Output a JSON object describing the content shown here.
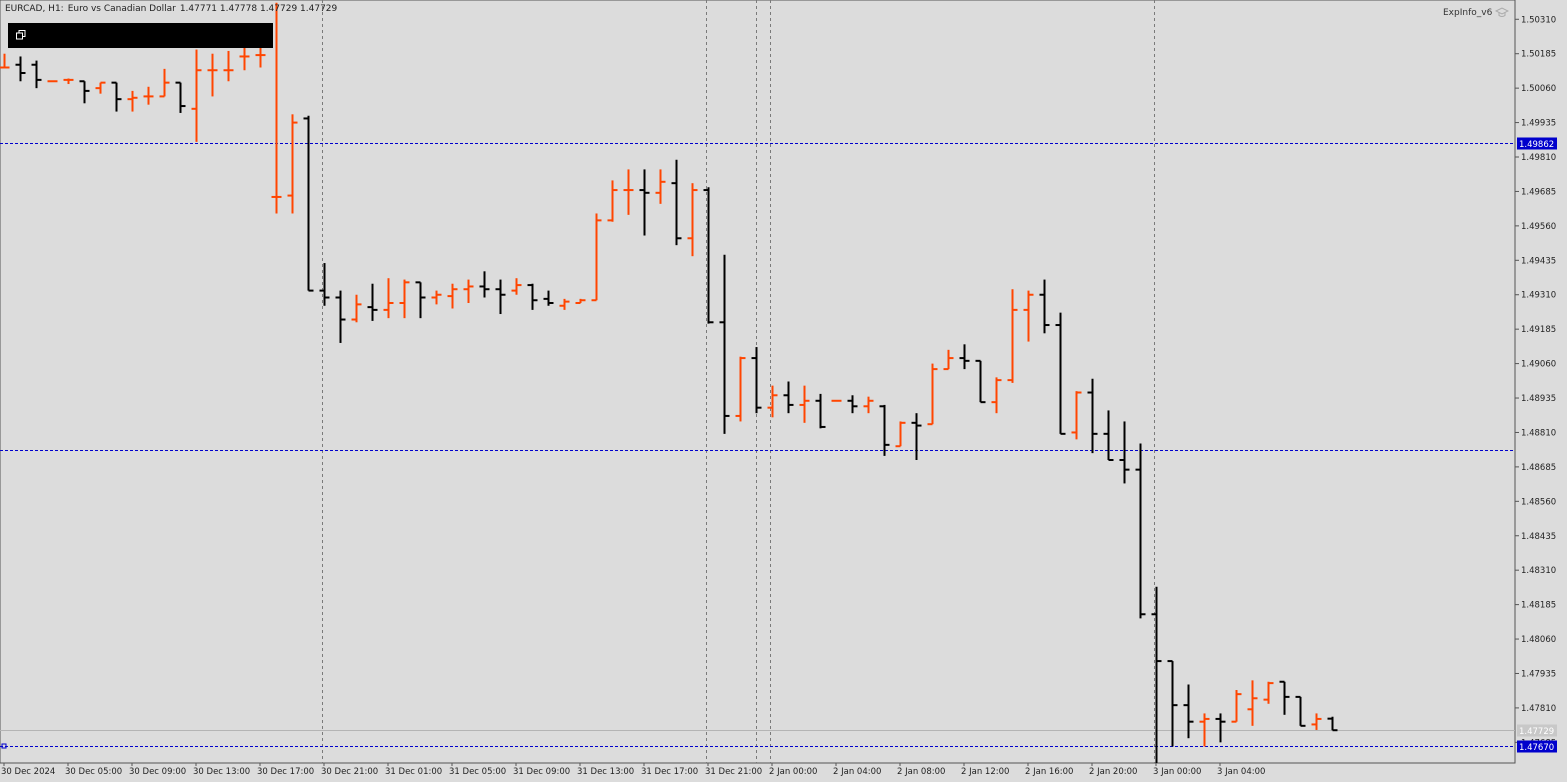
{
  "header": {
    "symbol": "EURCAD, H1:",
    "description": "Euro vs Canadian Dollar",
    "ohlc": "1.47771 1.47778 1.47729 1.47729"
  },
  "indicator": {
    "label": "ExpInfo_v6",
    "icon": "graduation-cap-icon"
  },
  "window_button": {
    "icon": "window-restore-icon"
  },
  "colors": {
    "background": "#dcdcdc",
    "bull": "#ff4500",
    "bear": "#000000",
    "level_line": "#0000cc",
    "level_label_bg": "#0000cc",
    "level_label_text": "#ffffff",
    "grid": "#7a7a7a",
    "axis_text": "#222222"
  },
  "chart_data": {
    "type": "ohlc",
    "timeframe": "H1",
    "y_axis": {
      "ticks": [
        "1.50310",
        "1.50185",
        "1.50060",
        "1.49935",
        "1.49810",
        "1.49685",
        "1.49560",
        "1.49435",
        "1.49310",
        "1.49185",
        "1.49060",
        "1.48935",
        "1.48810",
        "1.48685",
        "1.48560",
        "1.48435",
        "1.48310",
        "1.48185",
        "1.48060",
        "1.47935",
        "1.47810",
        "1.47685"
      ],
      "range": [
        1.4761,
        1.5038
      ]
    },
    "x_axis": {
      "labels": [
        "30 Dec 2024",
        "30 Dec 05:00",
        "30 Dec 09:00",
        "30 Dec 13:00",
        "30 Dec 17:00",
        "30 Dec 21:00",
        "31 Dec 01:00",
        "31 Dec 05:00",
        "31 Dec 09:00",
        "31 Dec 13:00",
        "31 Dec 17:00",
        "31 Dec 21:00",
        "2 Jan 00:00",
        "2 Jan 04:00",
        "2 Jan 08:00",
        "2 Jan 12:00",
        "2 Jan 16:00",
        "2 Jan 20:00",
        "3 Jan 00:00",
        "3 Jan 04:00"
      ]
    },
    "horizontal_levels": [
      {
        "price": 1.49862,
        "label": "1.49862"
      },
      {
        "price": 1.48745,
        "label": ""
      },
      {
        "price": 1.4767,
        "label": "1.47670"
      }
    ],
    "bid_level": {
      "price": 1.47729,
      "label": "1.47729"
    },
    "period_separators": [
      "30 Dec 21:00",
      "31 Dec 21:00",
      "2 Jan 00:00",
      "3 Jan 00:00"
    ],
    "bars": [
      {
        "o": 1.50135,
        "h": 1.50185,
        "l": 1.50135,
        "c": 1.50135
      },
      {
        "o": 1.50145,
        "h": 1.50175,
        "l": 1.50085,
        "c": 1.50115
      },
      {
        "o": 1.50145,
        "h": 1.5016,
        "l": 1.5006,
        "c": 1.5009
      },
      {
        "o": 1.50085,
        "h": 1.50085,
        "l": 1.50085,
        "c": 1.50085
      },
      {
        "o": 1.5009,
        "h": 1.50095,
        "l": 1.50075,
        "c": 1.5009
      },
      {
        "o": 1.50085,
        "h": 1.50085,
        "l": 1.50005,
        "c": 1.5005
      },
      {
        "o": 1.5006,
        "h": 1.5008,
        "l": 1.5004,
        "c": 1.5008
      },
      {
        "o": 1.5008,
        "h": 1.5008,
        "l": 1.49975,
        "c": 1.5002
      },
      {
        "o": 1.5002,
        "h": 1.5005,
        "l": 1.49975,
        "c": 1.50025
      },
      {
        "o": 1.5003,
        "h": 1.50065,
        "l": 1.5,
        "c": 1.5003
      },
      {
        "o": 1.5003,
        "h": 1.5013,
        "l": 1.5003,
        "c": 1.5008
      },
      {
        "o": 1.5008,
        "h": 1.5008,
        "l": 1.4997,
        "c": 1.49995
      },
      {
        "o": 1.49985,
        "h": 1.502,
        "l": 1.49865,
        "c": 1.50125
      },
      {
        "o": 1.50125,
        "h": 1.50185,
        "l": 1.5003,
        "c": 1.50125
      },
      {
        "o": 1.50125,
        "h": 1.50195,
        "l": 1.50085,
        "c": 1.50125
      },
      {
        "o": 1.50175,
        "h": 1.50235,
        "l": 1.50125,
        "c": 1.50175
      },
      {
        "o": 1.5018,
        "h": 1.5024,
        "l": 1.50135,
        "c": 1.5018
      },
      {
        "o": 1.49665,
        "h": 1.5037,
        "l": 1.49605,
        "c": 1.49665
      },
      {
        "o": 1.4967,
        "h": 1.49965,
        "l": 1.49605,
        "c": 1.49935
      },
      {
        "o": 1.4995,
        "h": 1.4996,
        "l": 1.49325,
        "c": 1.49325
      },
      {
        "o": 1.49325,
        "h": 1.49425,
        "l": 1.4927,
        "c": 1.493
      },
      {
        "o": 1.493,
        "h": 1.49325,
        "l": 1.49135,
        "c": 1.4922
      },
      {
        "o": 1.4922,
        "h": 1.4931,
        "l": 1.4921,
        "c": 1.49275
      },
      {
        "o": 1.49265,
        "h": 1.4935,
        "l": 1.49215,
        "c": 1.49255
      },
      {
        "o": 1.49255,
        "h": 1.4937,
        "l": 1.49225,
        "c": 1.4928
      },
      {
        "o": 1.4928,
        "h": 1.49365,
        "l": 1.49225,
        "c": 1.49355
      },
      {
        "o": 1.49355,
        "h": 1.49355,
        "l": 1.49225,
        "c": 1.493
      },
      {
        "o": 1.493,
        "h": 1.49325,
        "l": 1.49275,
        "c": 1.4931
      },
      {
        "o": 1.49305,
        "h": 1.4935,
        "l": 1.4926,
        "c": 1.4933
      },
      {
        "o": 1.4933,
        "h": 1.49365,
        "l": 1.4928,
        "c": 1.4934
      },
      {
        "o": 1.4934,
        "h": 1.49395,
        "l": 1.493,
        "c": 1.4933
      },
      {
        "o": 1.4933,
        "h": 1.49365,
        "l": 1.4924,
        "c": 1.4931
      },
      {
        "o": 1.49325,
        "h": 1.4937,
        "l": 1.4931,
        "c": 1.49345
      },
      {
        "o": 1.49345,
        "h": 1.4935,
        "l": 1.49255,
        "c": 1.4929
      },
      {
        "o": 1.49295,
        "h": 1.49325,
        "l": 1.4927,
        "c": 1.4928
      },
      {
        "o": 1.4927,
        "h": 1.49295,
        "l": 1.49255,
        "c": 1.49285
      },
      {
        "o": 1.4928,
        "h": 1.49295,
        "l": 1.4928,
        "c": 1.4929
      },
      {
        "o": 1.4929,
        "h": 1.49605,
        "l": 1.4929,
        "c": 1.4958
      },
      {
        "o": 1.4958,
        "h": 1.49725,
        "l": 1.49575,
        "c": 1.4969
      },
      {
        "o": 1.4969,
        "h": 1.49765,
        "l": 1.496,
        "c": 1.4969
      },
      {
        "o": 1.4969,
        "h": 1.49765,
        "l": 1.49525,
        "c": 1.4968
      },
      {
        "o": 1.4968,
        "h": 1.49765,
        "l": 1.4964,
        "c": 1.4972
      },
      {
        "o": 1.49715,
        "h": 1.498,
        "l": 1.4949,
        "c": 1.49515
      },
      {
        "o": 1.49515,
        "h": 1.49715,
        "l": 1.4945,
        "c": 1.4969
      },
      {
        "o": 1.4969,
        "h": 1.497,
        "l": 1.49205,
        "c": 1.4921
      },
      {
        "o": 1.4921,
        "h": 1.49455,
        "l": 1.48805,
        "c": 1.4887
      },
      {
        "o": 1.4887,
        "h": 1.49085,
        "l": 1.4885,
        "c": 1.4908
      },
      {
        "o": 1.4908,
        "h": 1.4912,
        "l": 1.4888,
        "c": 1.489
      },
      {
        "o": 1.489,
        "h": 1.4898,
        "l": 1.48865,
        "c": 1.48945
      },
      {
        "o": 1.48945,
        "h": 1.48995,
        "l": 1.4888,
        "c": 1.4891
      },
      {
        "o": 1.4891,
        "h": 1.4898,
        "l": 1.48845,
        "c": 1.48925
      },
      {
        "o": 1.48925,
        "h": 1.4895,
        "l": 1.48825,
        "c": 1.4883
      },
      {
        "o": 1.48925,
        "h": 1.48925,
        "l": 1.48925,
        "c": 1.48925
      },
      {
        "o": 1.48925,
        "h": 1.48945,
        "l": 1.4888,
        "c": 1.48905
      },
      {
        "o": 1.48905,
        "h": 1.4894,
        "l": 1.4888,
        "c": 1.48925
      },
      {
        "o": 1.48905,
        "h": 1.4891,
        "l": 1.48725,
        "c": 1.48765
      },
      {
        "o": 1.4876,
        "h": 1.4885,
        "l": 1.4876,
        "c": 1.48845
      },
      {
        "o": 1.48845,
        "h": 1.4888,
        "l": 1.4871,
        "c": 1.48835
      },
      {
        "o": 1.4884,
        "h": 1.4906,
        "l": 1.4884,
        "c": 1.4904
      },
      {
        "o": 1.4904,
        "h": 1.4911,
        "l": 1.4904,
        "c": 1.4908
      },
      {
        "o": 1.4908,
        "h": 1.4913,
        "l": 1.4904,
        "c": 1.4907
      },
      {
        "o": 1.4907,
        "h": 1.4907,
        "l": 1.4892,
        "c": 1.4892
      },
      {
        "o": 1.4892,
        "h": 1.4901,
        "l": 1.4888,
        "c": 1.49
      },
      {
        "o": 1.49,
        "h": 1.4933,
        "l": 1.4899,
        "c": 1.49255
      },
      {
        "o": 1.49255,
        "h": 1.49325,
        "l": 1.4914,
        "c": 1.4931
      },
      {
        "o": 1.4931,
        "h": 1.49365,
        "l": 1.4917,
        "c": 1.492
      },
      {
        "o": 1.492,
        "h": 1.49245,
        "l": 1.48805,
        "c": 1.48805
      },
      {
        "o": 1.4881,
        "h": 1.4896,
        "l": 1.48785,
        "c": 1.48955
      },
      {
        "o": 1.48955,
        "h": 1.49005,
        "l": 1.48735,
        "c": 1.48805
      },
      {
        "o": 1.48805,
        "h": 1.4889,
        "l": 1.4871,
        "c": 1.4871
      },
      {
        "o": 1.4871,
        "h": 1.4885,
        "l": 1.48625,
        "c": 1.48675
      },
      {
        "o": 1.48675,
        "h": 1.4877,
        "l": 1.48135,
        "c": 1.4815
      },
      {
        "o": 1.4815,
        "h": 1.4825,
        "l": 1.4761,
        "c": 1.4798
      },
      {
        "o": 1.4798,
        "h": 1.4798,
        "l": 1.4767,
        "c": 1.4782
      },
      {
        "o": 1.4782,
        "h": 1.47895,
        "l": 1.477,
        "c": 1.4776
      },
      {
        "o": 1.4776,
        "h": 1.4779,
        "l": 1.4767,
        "c": 1.4777
      },
      {
        "o": 1.4777,
        "h": 1.4779,
        "l": 1.47685,
        "c": 1.4776
      },
      {
        "o": 1.4776,
        "h": 1.47875,
        "l": 1.4776,
        "c": 1.4786
      },
      {
        "o": 1.47805,
        "h": 1.4791,
        "l": 1.47745,
        "c": 1.47845
      },
      {
        "o": 1.4784,
        "h": 1.47905,
        "l": 1.47825,
        "c": 1.479
      },
      {
        "o": 1.47905,
        "h": 1.47905,
        "l": 1.47785,
        "c": 1.4785
      },
      {
        "o": 1.4785,
        "h": 1.4785,
        "l": 1.47745,
        "c": 1.47745
      },
      {
        "o": 1.4775,
        "h": 1.4779,
        "l": 1.4773,
        "c": 1.4777
      },
      {
        "o": 1.47771,
        "h": 1.47778,
        "l": 1.47729,
        "c": 1.47729
      }
    ]
  }
}
